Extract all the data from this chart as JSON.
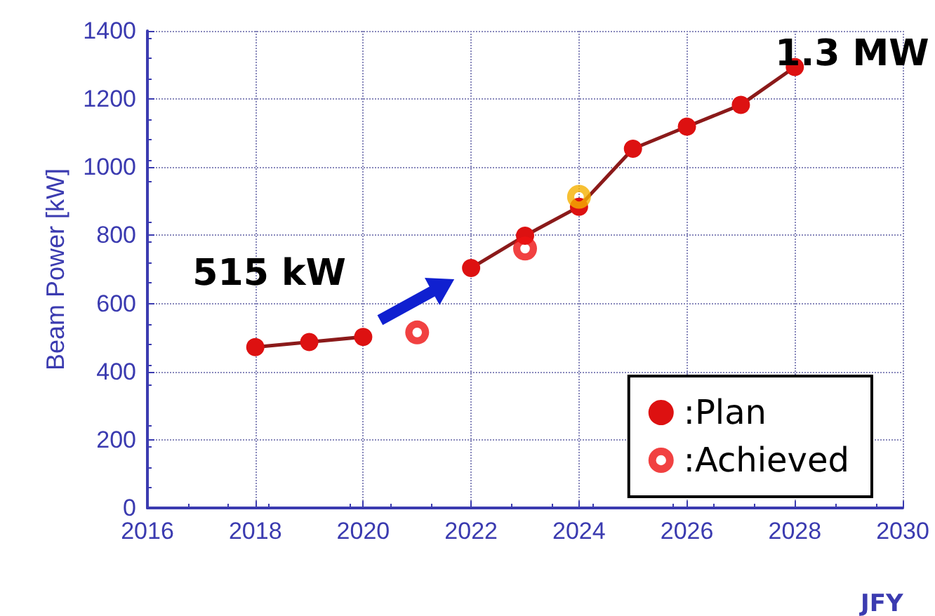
{
  "chart_data": {
    "type": "line",
    "ylabel": "Beam Power [kW]",
    "xlabel": "JFY",
    "xlim": [
      2016,
      2030
    ],
    "xticks": [
      2016,
      2018,
      2020,
      2022,
      2024,
      2026,
      2028,
      2030
    ],
    "ylim": [
      0,
      1400
    ],
    "yticks": [
      0,
      200,
      400,
      600,
      800,
      1000,
      1200,
      1400
    ],
    "series": [
      {
        "name": ":Plan",
        "color": "#dd1111",
        "marker": "circle",
        "x": [
          2018,
          2019,
          2020,
          2021,
          2022,
          2023,
          2024,
          2025,
          2026,
          2027,
          2028
        ],
        "values": [
          472,
          487,
          502,
          null,
          704,
          799,
          884,
          1054,
          1119,
          1183,
          1294
        ]
      },
      {
        "name": ":Achieved",
        "type": "scatter",
        "color": "#ee1111",
        "colors": [
          "#ee1111",
          "#ee1111",
          "#f5b000"
        ],
        "marker": "circle",
        "x": [
          2021,
          2023,
          2024
        ],
        "values": [
          515,
          761,
          913
        ]
      }
    ],
    "annotations": [
      {
        "text": "515 kW",
        "x": 2021,
        "y": 515
      },
      {
        "text": "1.3 MW",
        "x": 2028,
        "y": 1294
      }
    ],
    "grid": true,
    "legend": "bottom right",
    "line_style": "solid"
  }
}
